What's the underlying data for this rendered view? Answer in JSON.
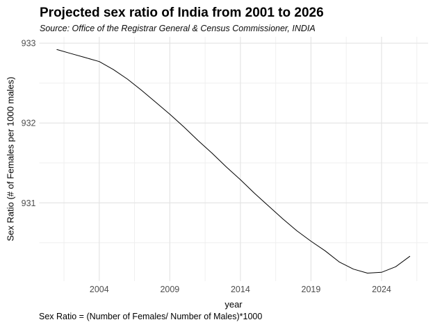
{
  "header": {
    "title": "Projected sex ratio of India from 2001 to 2026",
    "subtitle": "Source: Office of the Registrar General & Census Commissioner, INDIA"
  },
  "caption": "Sex Ratio = (Number of Females/ Number of Males)*1000",
  "chart_data": {
    "type": "line",
    "title": "Projected sex ratio of India from 2001 to 2026",
    "subtitle": "Source: Office of the Registrar General & Census Commissioner, INDIA",
    "caption": "Sex Ratio = (Number of Females/ Number of Males)*1000",
    "xlabel": "year",
    "ylabel": "Sex Ratio (# of Females per 1000 males)",
    "x": [
      2001,
      2002,
      2003,
      2004,
      2005,
      2006,
      2007,
      2008,
      2009,
      2010,
      2011,
      2012,
      2013,
      2014,
      2015,
      2016,
      2017,
      2018,
      2019,
      2020,
      2021,
      2022,
      2023,
      2024,
      2025,
      2026
    ],
    "values": [
      932.92,
      932.87,
      932.82,
      932.77,
      932.67,
      932.55,
      932.41,
      932.26,
      932.11,
      931.95,
      931.78,
      931.62,
      931.45,
      931.29,
      931.12,
      930.96,
      930.8,
      930.65,
      930.52,
      930.4,
      930.26,
      930.17,
      930.12,
      930.13,
      930.2,
      930.33
    ],
    "x_ticks": [
      2004,
      2009,
      2014,
      2019,
      2024
    ],
    "x_minor_ticks": [
      2001.5,
      2006.5,
      2011.5,
      2016.5,
      2021.5,
      2026.5
    ],
    "y_ticks": [
      933,
      932,
      931
    ],
    "y_minor_ticks": [
      932.5,
      931.5,
      930.5
    ],
    "xlim": [
      1999.75,
      2027.3
    ],
    "ylim": [
      930.02,
      933.08
    ],
    "grid": true,
    "legend_position": "none",
    "line_color": "#000000",
    "grid_major_color": "#e4e4e4",
    "grid_minor_color": "#efefef",
    "tick_label_color": "#4d4d4d",
    "background_color": "#ffffff"
  }
}
